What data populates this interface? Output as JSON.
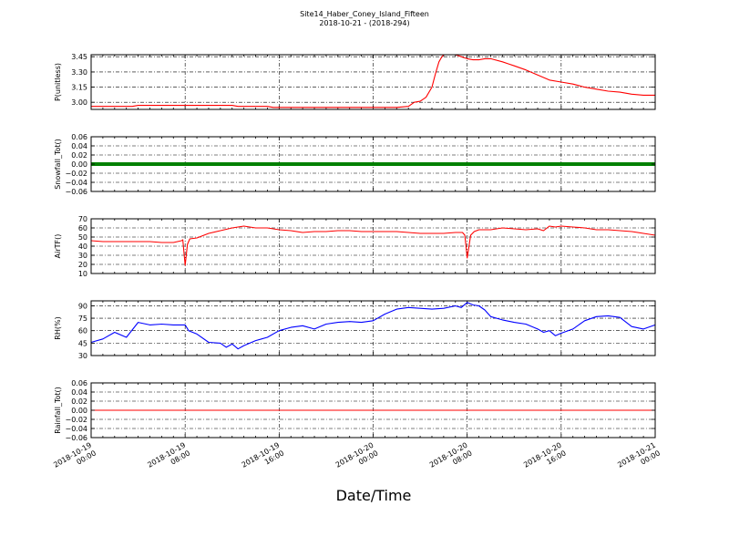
{
  "figure": {
    "title": "Site14_Haber_Coney_Island_Fifteen",
    "subtitle": "2018-10-21 - (2018-294)",
    "xlabel": "Date/Time",
    "x_ticks": [
      [
        "2018-10-19",
        "00:00"
      ],
      [
        "2018-10-19",
        "08:00"
      ],
      [
        "2018-10-19",
        "16:00"
      ],
      [
        "2018-10-20",
        "00:00"
      ],
      [
        "2018-10-20",
        "08:00"
      ],
      [
        "2018-10-20",
        "16:00"
      ],
      [
        "2018-10-21",
        "00:00"
      ]
    ]
  },
  "chart_data": [
    {
      "type": "line",
      "ylabel": "P(unitless)",
      "ylim": [
        2.93,
        3.47
      ],
      "yticks": [
        3.0,
        3.15,
        3.3,
        3.45
      ],
      "ytick_labels": [
        "3.00",
        "3.15",
        "3.30",
        "3.45"
      ],
      "xlim_hours": [
        0,
        48
      ],
      "grid": true,
      "series": [
        {
          "color": "#ff0000",
          "x": [
            0,
            1,
            2,
            3,
            3.5,
            4,
            5,
            6,
            7,
            8,
            9,
            10,
            11,
            11.5,
            12,
            12.5,
            13,
            14,
            15,
            15.5,
            16,
            17,
            18,
            19,
            20,
            22,
            24,
            26,
            27,
            27.5,
            28,
            28.5,
            29,
            29.3,
            29.6,
            29.8,
            30,
            31,
            31.5,
            32,
            32.5,
            33,
            33.5,
            34,
            35,
            35.5,
            36,
            37,
            38,
            39,
            40,
            41,
            42,
            43,
            44,
            45,
            46,
            47,
            48
          ],
          "y": [
            2.96,
            2.96,
            2.96,
            2.96,
            2.96,
            2.97,
            2.97,
            2.97,
            2.97,
            2.97,
            2.97,
            2.97,
            2.97,
            2.97,
            2.97,
            2.96,
            2.96,
            2.96,
            2.96,
            2.95,
            2.95,
            2.95,
            2.95,
            2.95,
            2.95,
            2.95,
            2.95,
            2.95,
            2.96,
            3.0,
            3.01,
            3.05,
            3.15,
            3.28,
            3.4,
            3.44,
            3.47,
            3.47,
            3.45,
            3.43,
            3.42,
            3.42,
            3.43,
            3.43,
            3.4,
            3.38,
            3.36,
            3.32,
            3.27,
            3.22,
            3.2,
            3.18,
            3.15,
            3.13,
            3.11,
            3.1,
            3.08,
            3.07,
            3.07
          ]
        }
      ]
    },
    {
      "type": "line",
      "ylabel": "Snowfall_Tot()",
      "ylim": [
        -0.06,
        0.06
      ],
      "yticks": [
        -0.06,
        -0.04,
        -0.02,
        0.0,
        0.02,
        0.04,
        0.06
      ],
      "ytick_labels": [
        "−0.06",
        "−0.04",
        "−0.02",
        "0.00",
        "0.02",
        "0.04",
        "0.06"
      ],
      "xlim_hours": [
        0,
        48
      ],
      "grid": true,
      "series": [
        {
          "color": "#008000",
          "style": "thick",
          "x": [
            0,
            48
          ],
          "y": [
            0,
            0
          ]
        }
      ]
    },
    {
      "type": "line",
      "ylabel": "AirTF()",
      "ylim": [
        10,
        70
      ],
      "yticks": [
        10,
        20,
        30,
        40,
        50,
        60,
        70
      ],
      "ytick_labels": [
        "10",
        "20",
        "30",
        "40",
        "50",
        "60",
        "70"
      ],
      "xlim_hours": [
        0,
        48
      ],
      "grid": true,
      "series": [
        {
          "color": "#ff0000",
          "x": [
            0,
            1,
            2,
            3,
            4,
            5,
            6,
            7,
            7.7,
            7.8,
            8,
            8.2,
            8.4,
            9,
            10,
            11,
            12,
            13,
            14,
            15,
            16,
            17,
            18,
            19,
            20,
            21,
            22,
            23,
            24,
            25,
            26,
            27,
            28,
            29,
            30,
            31,
            31.6,
            31.8,
            32,
            32.3,
            32.6,
            33,
            34,
            35,
            36,
            37,
            38,
            38.5,
            39,
            39.5,
            40,
            41,
            42,
            43,
            44,
            45,
            46,
            47,
            48
          ],
          "y": [
            46,
            45,
            45,
            45,
            45,
            45,
            44,
            44,
            46,
            47,
            19,
            42,
            48,
            49,
            54,
            57,
            60,
            62,
            60,
            60,
            58,
            57,
            55,
            56,
            56,
            57,
            57,
            56,
            56,
            56,
            56,
            55,
            54,
            54,
            54,
            55,
            55,
            52,
            27,
            52,
            56,
            58,
            58,
            60,
            59,
            58,
            59,
            57,
            62,
            61,
            62,
            61,
            60,
            58,
            58,
            57,
            56,
            54,
            52
          ]
        }
      ]
    },
    {
      "type": "line",
      "ylabel": "RH(%)",
      "ylim": [
        30,
        96
      ],
      "yticks": [
        30,
        45,
        60,
        75,
        90
      ],
      "ytick_labels": [
        "30",
        "45",
        "60",
        "75",
        "90"
      ],
      "xlim_hours": [
        0,
        48
      ],
      "grid": true,
      "series": [
        {
          "color": "#0000ff",
          "x": [
            0,
            1,
            2,
            3,
            4,
            5,
            6,
            7,
            8,
            8.3,
            9,
            10,
            11,
            11.5,
            12,
            12.5,
            13,
            14,
            14.5,
            15,
            16,
            17,
            18,
            19,
            20,
            21,
            22,
            23,
            24,
            25,
            26,
            27,
            28,
            29,
            30,
            31,
            31.5,
            32,
            32.5,
            33,
            33.5,
            34,
            35,
            36,
            37,
            38,
            38.5,
            39,
            39.5,
            40,
            41,
            42,
            43,
            44,
            45,
            46,
            47,
            48
          ],
          "y": [
            46,
            50,
            58,
            52,
            70,
            67,
            68,
            67,
            67,
            60,
            56,
            46,
            45,
            40,
            44,
            38,
            42,
            48,
            50,
            52,
            60,
            64,
            66,
            62,
            68,
            70,
            71,
            70,
            72,
            80,
            86,
            88,
            87,
            86,
            87,
            90,
            88,
            94,
            91,
            90,
            85,
            77,
            73,
            70,
            68,
            62,
            58,
            60,
            54,
            57,
            62,
            72,
            77,
            78,
            76,
            65,
            62,
            67
          ]
        }
      ]
    },
    {
      "type": "line",
      "ylabel": "Rainfall_Tot()",
      "ylim": [
        -0.06,
        0.06
      ],
      "yticks": [
        -0.06,
        -0.04,
        -0.02,
        0.0,
        0.02,
        0.04,
        0.06
      ],
      "ytick_labels": [
        "−0.06",
        "−0.04",
        "−0.02",
        "0.00",
        "0.02",
        "0.04",
        "0.06"
      ],
      "xlim_hours": [
        0,
        48
      ],
      "grid": true,
      "series": [
        {
          "color": "#ff0000",
          "x": [
            0,
            48
          ],
          "y": [
            0,
            0
          ]
        }
      ]
    }
  ]
}
